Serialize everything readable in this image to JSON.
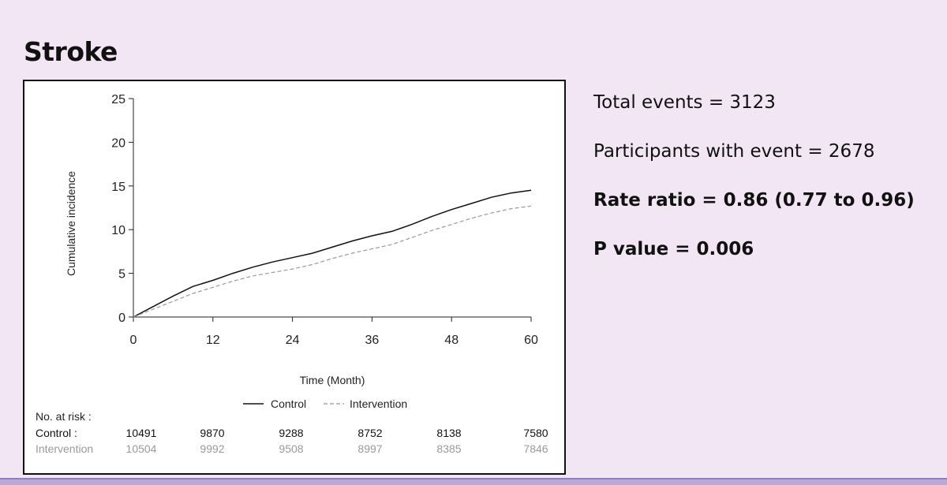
{
  "slide": {
    "title": "Stroke"
  },
  "stats": {
    "total_events": "Total events = 3123",
    "participants": "Participants with event = 2678",
    "rate_ratio": "Rate ratio = 0.86 (0.77 to 0.96)",
    "p_value": "P value = 0.006"
  },
  "chart_data": {
    "type": "line",
    "title": "",
    "xlabel": "Time (Month)",
    "ylabel": "Cumulative incidence",
    "xlim": [
      0,
      60
    ],
    "ylim": [
      0,
      25
    ],
    "xticks": [
      0,
      12,
      24,
      36,
      48,
      60
    ],
    "yticks": [
      0,
      5,
      10,
      15,
      20,
      25
    ],
    "series": [
      {
        "name": "Control",
        "color": "#111111",
        "dash": false,
        "x": [
          0,
          3,
          6,
          9,
          12,
          15,
          18,
          21,
          24,
          27,
          30,
          33,
          36,
          39,
          42,
          45,
          48,
          51,
          54,
          57,
          60
        ],
        "y": [
          0,
          1.2,
          2.4,
          3.5,
          4.2,
          5.0,
          5.7,
          6.3,
          6.8,
          7.3,
          8.0,
          8.7,
          9.3,
          9.8,
          10.6,
          11.5,
          12.3,
          13.0,
          13.7,
          14.2,
          14.5
        ]
      },
      {
        "name": "Intervention",
        "color": "#999999",
        "dash": true,
        "x": [
          0,
          3,
          6,
          9,
          12,
          15,
          18,
          21,
          24,
          27,
          30,
          33,
          36,
          39,
          42,
          45,
          48,
          51,
          54,
          57,
          60
        ],
        "y": [
          0,
          0.9,
          1.8,
          2.7,
          3.4,
          4.1,
          4.7,
          5.1,
          5.5,
          6.0,
          6.7,
          7.3,
          7.8,
          8.3,
          9.1,
          9.9,
          10.6,
          11.3,
          11.9,
          12.4,
          12.7
        ]
      }
    ],
    "legend": [
      "Control",
      "Intervention"
    ],
    "risk_table": {
      "heading": "No. at risk :",
      "rows": [
        {
          "label": "Control :",
          "color": "#111111",
          "values": [
            "10491",
            "9870",
            "9288",
            "8752",
            "8138",
            "7580"
          ]
        },
        {
          "label": "Intervention",
          "color": "#999999",
          "values": [
            "10504",
            "9992",
            "9508",
            "8997",
            "8385",
            "7846"
          ]
        }
      ]
    }
  }
}
